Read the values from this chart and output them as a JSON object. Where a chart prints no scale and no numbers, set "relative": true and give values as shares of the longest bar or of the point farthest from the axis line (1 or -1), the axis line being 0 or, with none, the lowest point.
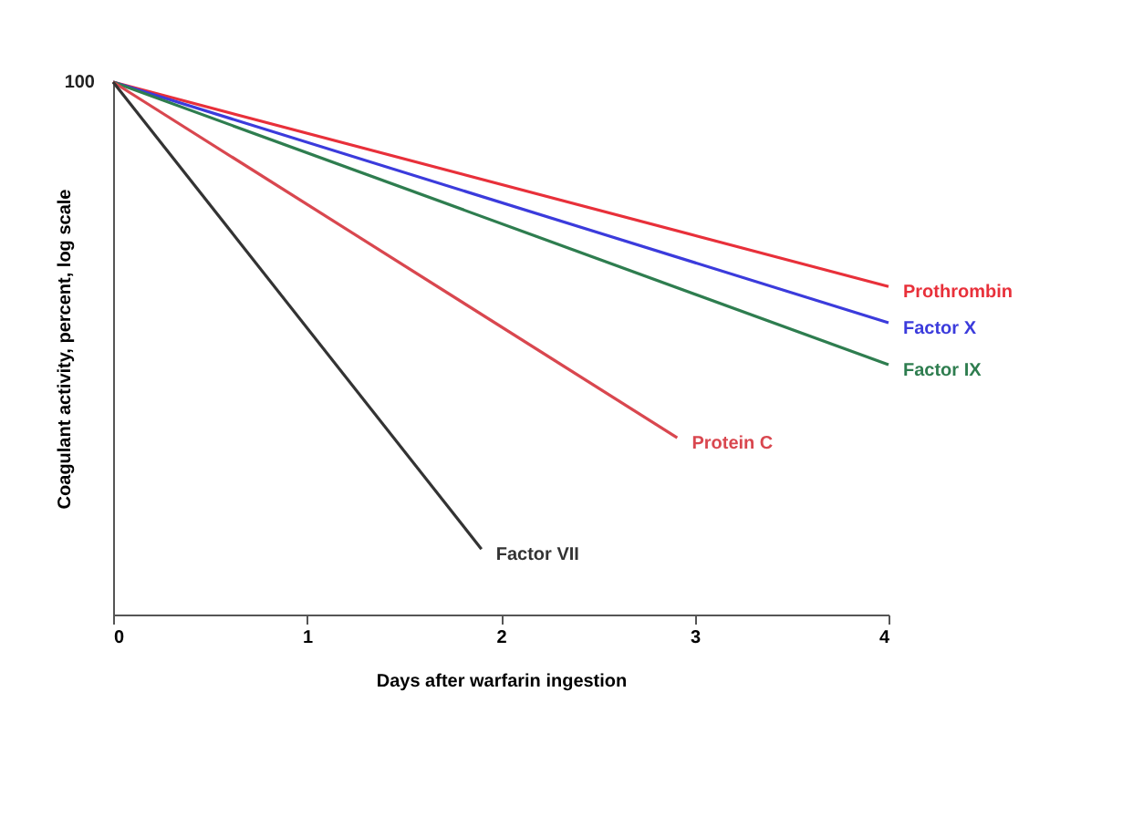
{
  "chart_data": {
    "type": "line",
    "relative": true,
    "xlabel": "Days after warfarin ingestion",
    "ylabel": "Coagulant activity, percent, log scale",
    "xlim": [
      0,
      4
    ],
    "xticks": [
      0,
      1,
      2,
      3,
      4
    ],
    "legend": false,
    "grid": false,
    "marker": "none",
    "line_style": "solid",
    "annotations": [
      {
        "text": "100",
        "x": 0,
        "y": 1
      }
    ],
    "series": [
      {
        "name": "Prothrombin",
        "color": "#e8303a",
        "x": [
          0,
          4
        ],
        "values": [
          1,
          0.616
        ]
      },
      {
        "name": "Factor X",
        "color": "#3b3bdc",
        "x": [
          0,
          4
        ],
        "values": [
          1,
          0.548
        ]
      },
      {
        "name": "Factor IX",
        "color": "#2e7d4f",
        "x": [
          0,
          4
        ],
        "values": [
          1,
          0.469
        ]
      },
      {
        "name": "Protein C",
        "color": "#d9474f",
        "x": [
          0,
          2.91
        ],
        "values": [
          1,
          0.332
        ]
      },
      {
        "name": "Factor VII",
        "color": "#333333",
        "x": [
          0,
          1.9
        ],
        "values": [
          1,
          0.123
        ]
      }
    ]
  }
}
